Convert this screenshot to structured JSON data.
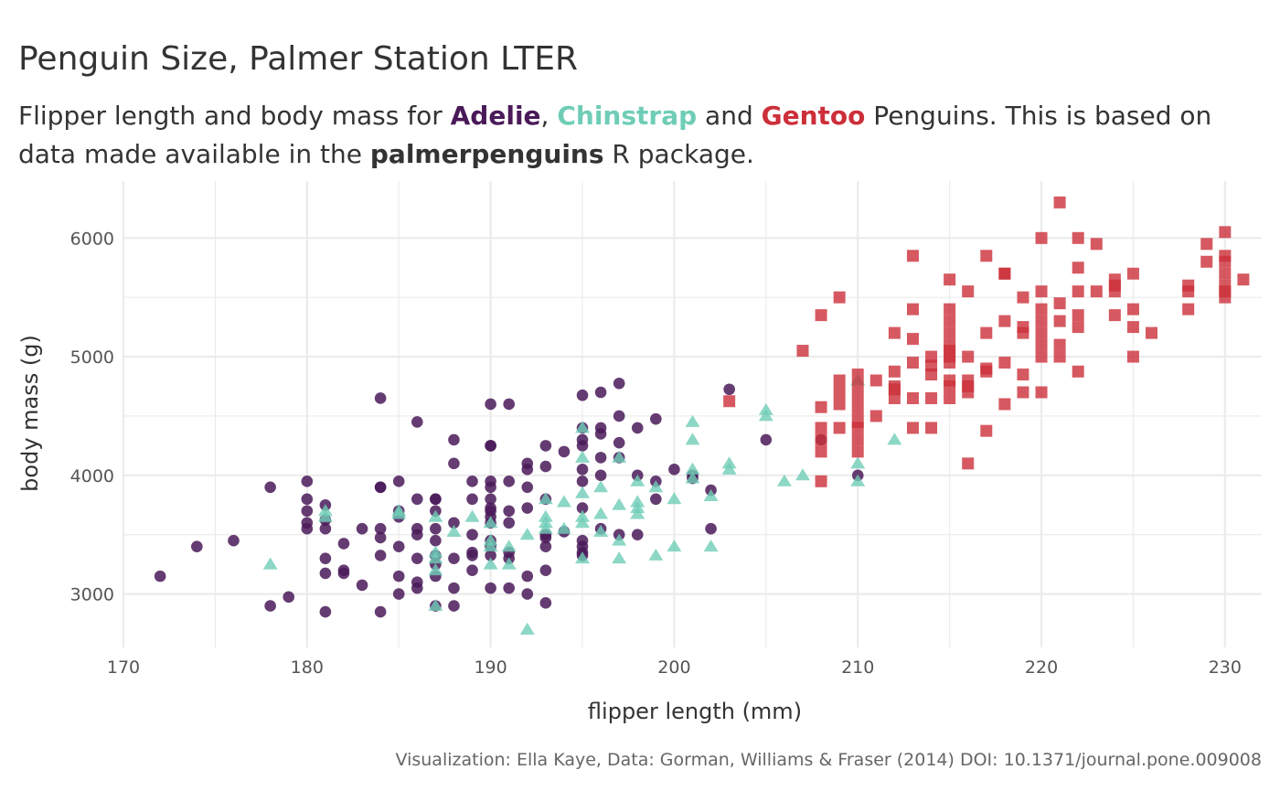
{
  "title": "Penguin Size, Palmer Station LTER",
  "subtitle": {
    "part1": "Flipper length and body mass for ",
    "adelie": "Adelie",
    "sep1": ", ",
    "chinstrap": "Chinstrap",
    "sep2": " and ",
    "gentoo": "Gentoo",
    "part2": " Penguins. This is based on data made available in the ",
    "package": "palmerpenguins",
    "part3": " R package."
  },
  "caption": "Visualization: Ella Kaye, Data: Gorman, Williams & Fraser (2014) DOI: 10.1371/journal.pone.009008",
  "colors": {
    "Adelie": "#4a1a59",
    "Chinstrap": "#6fcdb6",
    "Gentoo": "#cc2f3a",
    "grid": "#ebebeb"
  },
  "chart_data": {
    "type": "scatter",
    "xlabel": "flipper length (mm)",
    "ylabel": "body mass (g)",
    "xlim": [
      170,
      232
    ],
    "ylim": [
      2550,
      6480
    ],
    "xticks": [
      170,
      180,
      190,
      200,
      210,
      220,
      230
    ],
    "yticks": [
      3000,
      4000,
      5000,
      6000
    ],
    "grid": true,
    "legend": "none",
    "series": [
      {
        "name": "Adelie",
        "marker": "circle",
        "points": [
          [
            172,
            3150
          ],
          [
            174,
            3400
          ],
          [
            176,
            3450
          ],
          [
            178,
            3900
          ],
          [
            178,
            2900
          ],
          [
            179,
            2975
          ],
          [
            180,
            3950
          ],
          [
            180,
            3800
          ],
          [
            180,
            3700
          ],
          [
            180,
            3600
          ],
          [
            180,
            3550
          ],
          [
            181,
            3750
          ],
          [
            181,
            3625
          ],
          [
            181,
            3550
          ],
          [
            181,
            3300
          ],
          [
            181,
            3175
          ],
          [
            181,
            2850
          ],
          [
            182,
            3425
          ],
          [
            182,
            3200
          ],
          [
            182,
            3175
          ],
          [
            183,
            3550
          ],
          [
            183,
            3075
          ],
          [
            184,
            4650
          ],
          [
            184,
            3900
          ],
          [
            184,
            3900
          ],
          [
            184,
            3550
          ],
          [
            184,
            3475
          ],
          [
            184,
            3325
          ],
          [
            184,
            2850
          ],
          [
            185,
            3950
          ],
          [
            185,
            3700
          ],
          [
            185,
            3650
          ],
          [
            185,
            3400
          ],
          [
            185,
            3150
          ],
          [
            185,
            3000
          ],
          [
            186,
            4450
          ],
          [
            186,
            3800
          ],
          [
            186,
            3550
          ],
          [
            186,
            3500
          ],
          [
            186,
            3300
          ],
          [
            186,
            3100
          ],
          [
            186,
            3050
          ],
          [
            187,
            3800
          ],
          [
            187,
            3800
          ],
          [
            187,
            3700
          ],
          [
            187,
            3550
          ],
          [
            187,
            3450
          ],
          [
            187,
            3325
          ],
          [
            187,
            3250
          ],
          [
            187,
            3150
          ],
          [
            187,
            2900
          ],
          [
            188,
            4300
          ],
          [
            188,
            4100
          ],
          [
            188,
            3600
          ],
          [
            188,
            3300
          ],
          [
            188,
            3050
          ],
          [
            188,
            2900
          ],
          [
            189,
            3950
          ],
          [
            189,
            3800
          ],
          [
            189,
            3500
          ],
          [
            189,
            3350
          ],
          [
            189,
            3325
          ],
          [
            189,
            3200
          ],
          [
            190,
            4600
          ],
          [
            190,
            4250
          ],
          [
            190,
            4250
          ],
          [
            190,
            3950
          ],
          [
            190,
            3900
          ],
          [
            190,
            3800
          ],
          [
            190,
            3725
          ],
          [
            190,
            3700
          ],
          [
            190,
            3650
          ],
          [
            190,
            3600
          ],
          [
            190,
            3450
          ],
          [
            190,
            3400
          ],
          [
            190,
            3325
          ],
          [
            190,
            3050
          ],
          [
            191,
            4600
          ],
          [
            191,
            3950
          ],
          [
            191,
            3700
          ],
          [
            191,
            3600
          ],
          [
            191,
            3350
          ],
          [
            191,
            3300
          ],
          [
            191,
            3050
          ],
          [
            192,
            4100
          ],
          [
            192,
            4050
          ],
          [
            192,
            3900
          ],
          [
            192,
            3725
          ],
          [
            192,
            3150
          ],
          [
            192,
            3000
          ],
          [
            193,
            4250
          ],
          [
            193,
            4075
          ],
          [
            193,
            3800
          ],
          [
            193,
            3500
          ],
          [
            193,
            3475
          ],
          [
            193,
            3400
          ],
          [
            193,
            3200
          ],
          [
            193,
            2925
          ],
          [
            194,
            4200
          ],
          [
            194,
            3525
          ],
          [
            195,
            4675
          ],
          [
            195,
            4400
          ],
          [
            195,
            4300
          ],
          [
            195,
            4250
          ],
          [
            195,
            4050
          ],
          [
            195,
            3950
          ],
          [
            195,
            3725
          ],
          [
            195,
            3450
          ],
          [
            195,
            3400
          ],
          [
            195,
            3350
          ],
          [
            195,
            3325
          ],
          [
            196,
            4700
          ],
          [
            196,
            4400
          ],
          [
            196,
            4350
          ],
          [
            196,
            4150
          ],
          [
            196,
            4000
          ],
          [
            196,
            3550
          ],
          [
            197,
            4775
          ],
          [
            197,
            4500
          ],
          [
            197,
            4275
          ],
          [
            197,
            4150
          ],
          [
            197,
            3500
          ],
          [
            198,
            4400
          ],
          [
            198,
            4000
          ],
          [
            198,
            3500
          ],
          [
            199,
            4475
          ],
          [
            199,
            3950
          ],
          [
            199,
            3800
          ],
          [
            200,
            4050
          ],
          [
            201,
            4000
          ],
          [
            201,
            3975
          ],
          [
            202,
            3875
          ],
          [
            202,
            3550
          ],
          [
            203,
            4725
          ],
          [
            205,
            4300
          ],
          [
            208,
            4300
          ],
          [
            210,
            4000
          ]
        ]
      },
      {
        "name": "Chinstrap",
        "marker": "triangle",
        "points": [
          [
            178,
            3250
          ],
          [
            181,
            3700
          ],
          [
            181,
            3650
          ],
          [
            185,
            3700
          ],
          [
            185,
            3675
          ],
          [
            187,
            3650
          ],
          [
            187,
            3350
          ],
          [
            187,
            3300
          ],
          [
            187,
            3200
          ],
          [
            187,
            2900
          ],
          [
            188,
            3525
          ],
          [
            189,
            3650
          ],
          [
            190,
            3600
          ],
          [
            190,
            3450
          ],
          [
            190,
            3400
          ],
          [
            190,
            3250
          ],
          [
            191,
            3400
          ],
          [
            191,
            3250
          ],
          [
            192,
            3500
          ],
          [
            192,
            2700
          ],
          [
            193,
            3800
          ],
          [
            193,
            3650
          ],
          [
            193,
            3600
          ],
          [
            193,
            3550
          ],
          [
            194,
            3775
          ],
          [
            194,
            3550
          ],
          [
            195,
            4400
          ],
          [
            195,
            4150
          ],
          [
            195,
            3850
          ],
          [
            195,
            3650
          ],
          [
            195,
            3600
          ],
          [
            195,
            3300
          ],
          [
            196,
            3900
          ],
          [
            196,
            3675
          ],
          [
            196,
            3525
          ],
          [
            197,
            4150
          ],
          [
            197,
            3750
          ],
          [
            197,
            3450
          ],
          [
            197,
            3300
          ],
          [
            198,
            3950
          ],
          [
            198,
            3775
          ],
          [
            198,
            3725
          ],
          [
            198,
            3675
          ],
          [
            199,
            3900
          ],
          [
            199,
            3325
          ],
          [
            200,
            3800
          ],
          [
            200,
            3400
          ],
          [
            201,
            4450
          ],
          [
            201,
            4300
          ],
          [
            201,
            4050
          ],
          [
            201,
            3975
          ],
          [
            202,
            3825
          ],
          [
            202,
            3400
          ],
          [
            203,
            4100
          ],
          [
            203,
            4050
          ],
          [
            205,
            4550
          ],
          [
            205,
            4500
          ],
          [
            206,
            3950
          ],
          [
            207,
            4000
          ],
          [
            210,
            4800
          ],
          [
            210,
            4100
          ],
          [
            210,
            3950
          ],
          [
            212,
            4300
          ]
        ]
      },
      {
        "name": "Gentoo",
        "marker": "square",
        "points": [
          [
            203,
            4625
          ],
          [
            207,
            5050
          ],
          [
            208,
            5350
          ],
          [
            208,
            4575
          ],
          [
            208,
            4400
          ],
          [
            208,
            4300
          ],
          [
            208,
            4200
          ],
          [
            208,
            3950
          ],
          [
            209,
            5500
          ],
          [
            209,
            4800
          ],
          [
            209,
            4700
          ],
          [
            209,
            4600
          ],
          [
            209,
            4400
          ],
          [
            210,
            4850
          ],
          [
            210,
            4750
          ],
          [
            210,
            4650
          ],
          [
            210,
            4550
          ],
          [
            210,
            4450
          ],
          [
            210,
            4400
          ],
          [
            210,
            4300
          ],
          [
            210,
            4200
          ],
          [
            211,
            4800
          ],
          [
            211,
            4500
          ],
          [
            212,
            5200
          ],
          [
            212,
            4875
          ],
          [
            212,
            4750
          ],
          [
            212,
            4725
          ],
          [
            212,
            4650
          ],
          [
            213,
            5850
          ],
          [
            213,
            5400
          ],
          [
            213,
            5150
          ],
          [
            213,
            4950
          ],
          [
            213,
            4650
          ],
          [
            213,
            4400
          ],
          [
            214,
            5000
          ],
          [
            214,
            4925
          ],
          [
            214,
            4850
          ],
          [
            214,
            4650
          ],
          [
            214,
            4400
          ],
          [
            215,
            5650
          ],
          [
            215,
            5400
          ],
          [
            215,
            5300
          ],
          [
            215,
            5200
          ],
          [
            215,
            5100
          ],
          [
            215,
            5050
          ],
          [
            215,
            5000
          ],
          [
            215,
            4950
          ],
          [
            215,
            4800
          ],
          [
            215,
            4750
          ],
          [
            215,
            4650
          ],
          [
            216,
            5550
          ],
          [
            216,
            5000
          ],
          [
            216,
            4800
          ],
          [
            216,
            4750
          ],
          [
            216,
            4700
          ],
          [
            216,
            4100
          ],
          [
            217,
            5850
          ],
          [
            217,
            5200
          ],
          [
            217,
            4900
          ],
          [
            217,
            4875
          ],
          [
            217,
            4375
          ],
          [
            218,
            5700
          ],
          [
            218,
            5700
          ],
          [
            218,
            5300
          ],
          [
            218,
            4950
          ],
          [
            218,
            4600
          ],
          [
            219,
            5500
          ],
          [
            219,
            5250
          ],
          [
            219,
            5200
          ],
          [
            219,
            4850
          ],
          [
            219,
            4700
          ],
          [
            220,
            6000
          ],
          [
            220,
            5550
          ],
          [
            220,
            5400
          ],
          [
            220,
            5300
          ],
          [
            220,
            5200
          ],
          [
            220,
            5100
          ],
          [
            220,
            5000
          ],
          [
            220,
            4700
          ],
          [
            221,
            6300
          ],
          [
            221,
            5450
          ],
          [
            221,
            5300
          ],
          [
            221,
            5100
          ],
          [
            221,
            5000
          ],
          [
            222,
            6000
          ],
          [
            222,
            5750
          ],
          [
            222,
            5550
          ],
          [
            222,
            5350
          ],
          [
            222,
            5250
          ],
          [
            222,
            4875
          ],
          [
            223,
            5950
          ],
          [
            223,
            5550
          ],
          [
            224,
            5650
          ],
          [
            224,
            5600
          ],
          [
            224,
            5550
          ],
          [
            224,
            5350
          ],
          [
            225,
            5700
          ],
          [
            225,
            5400
          ],
          [
            225,
            5250
          ],
          [
            225,
            5000
          ],
          [
            226,
            5200
          ],
          [
            228,
            5600
          ],
          [
            228,
            5550
          ],
          [
            228,
            5400
          ],
          [
            229,
            5950
          ],
          [
            229,
            5800
          ],
          [
            230,
            6050
          ],
          [
            230,
            5850
          ],
          [
            230,
            5800
          ],
          [
            230,
            5700
          ],
          [
            230,
            5600
          ],
          [
            230,
            5550
          ],
          [
            230,
            5500
          ],
          [
            231,
            5650
          ]
        ]
      }
    ]
  }
}
